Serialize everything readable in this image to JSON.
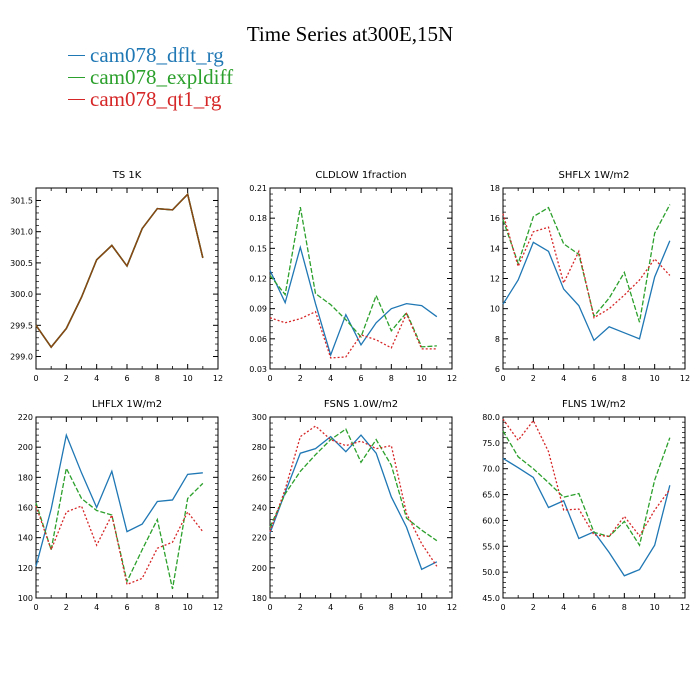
{
  "title": "Time Series at300E,15N",
  "legend": [
    {
      "label": "cam078_dflt_rg",
      "color": "#1f77b4"
    },
    {
      "label": "cam078_expldiff",
      "color": "#2ca02c"
    },
    {
      "label": "cam078_qt1_rg",
      "color": "#d62728"
    }
  ],
  "chart_data": [
    {
      "type": "line",
      "title": "TS   1K",
      "xlim": [
        0,
        12
      ],
      "xticks": [
        0,
        2,
        4,
        6,
        8,
        10,
        12
      ],
      "ylim": [
        298.8,
        301.7
      ],
      "yticks": [
        299.0,
        299.5,
        300.0,
        300.5,
        301.0,
        301.5
      ],
      "ytick_labels": [
        "299.0",
        "299.5",
        "300.0",
        "300.5",
        "301.0",
        "301.5"
      ],
      "x": [
        0,
        1,
        2,
        3,
        4,
        5,
        6,
        7,
        8,
        9,
        10,
        11
      ],
      "series": [
        {
          "name": "cam078_dflt_rg",
          "values": [
            299.5,
            299.15,
            299.45,
            299.95,
            300.55,
            300.78,
            300.45,
            301.05,
            301.37,
            301.35,
            301.6,
            300.58
          ]
        },
        {
          "name": "cam078_expldiff",
          "values": [
            299.5,
            299.15,
            299.45,
            299.95,
            300.55,
            300.78,
            300.45,
            301.05,
            301.37,
            301.35,
            301.6,
            300.58
          ]
        },
        {
          "name": "cam078_qt1_rg",
          "values": [
            299.5,
            299.15,
            299.45,
            299.95,
            300.55,
            300.78,
            300.45,
            301.05,
            301.37,
            301.35,
            301.6,
            300.58
          ]
        }
      ]
    },
    {
      "type": "line",
      "title": "CLDLOW   1fraction",
      "xlim": [
        0,
        12
      ],
      "xticks": [
        0,
        2,
        4,
        6,
        8,
        10,
        12
      ],
      "ylim": [
        0.03,
        0.21
      ],
      "yticks": [
        0.03,
        0.06,
        0.09,
        0.12,
        0.15,
        0.18,
        0.21
      ],
      "ytick_labels": [
        "0.03",
        "0.06",
        "0.09",
        "0.12",
        "0.15",
        "0.18",
        "0.21"
      ],
      "x": [
        0,
        1,
        2,
        3,
        4,
        5,
        6,
        7,
        8,
        9,
        10,
        11
      ],
      "series": [
        {
          "name": "cam078_dflt_rg",
          "values": [
            0.128,
            0.096,
            0.151,
            0.095,
            0.044,
            0.084,
            0.054,
            0.076,
            0.09,
            0.095,
            0.093,
            0.082
          ]
        },
        {
          "name": "cam078_expldiff",
          "values": [
            0.123,
            0.104,
            0.191,
            0.105,
            0.094,
            0.079,
            0.062,
            0.103,
            0.068,
            0.086,
            0.052,
            0.053
          ]
        },
        {
          "name": "cam078_qt1_rg",
          "values": [
            0.081,
            0.076,
            0.08,
            0.087,
            0.041,
            0.042,
            0.064,
            0.059,
            0.051,
            0.085,
            0.05,
            0.05
          ]
        }
      ]
    },
    {
      "type": "line",
      "title": "SHFLX   1W/m2",
      "xlim": [
        0,
        12
      ],
      "xticks": [
        0,
        2,
        4,
        6,
        8,
        10,
        12
      ],
      "ylim": [
        6,
        18
      ],
      "yticks": [
        6,
        8,
        10,
        12,
        14,
        16,
        18
      ],
      "ytick_labels": [
        "6",
        "8",
        "10",
        "12",
        "14",
        "16",
        "18"
      ],
      "x": [
        0,
        1,
        2,
        3,
        4,
        5,
        6,
        7,
        8,
        9,
        10,
        11
      ],
      "series": [
        {
          "name": "cam078_dflt_rg",
          "values": [
            10.3,
            11.9,
            14.4,
            13.8,
            11.3,
            10.2,
            7.9,
            8.8,
            8.4,
            8.0,
            12.1,
            14.5
          ]
        },
        {
          "name": "cam078_expldiff",
          "values": [
            15.9,
            13.0,
            16.1,
            16.7,
            14.3,
            13.6,
            9.5,
            10.7,
            12.4,
            9.1,
            15.0,
            16.9
          ]
        },
        {
          "name": "cam078_qt1_rg",
          "values": [
            16.3,
            12.8,
            15.1,
            15.4,
            11.7,
            13.8,
            9.4,
            10.0,
            10.9,
            11.9,
            13.3,
            12.2
          ]
        }
      ]
    },
    {
      "type": "line",
      "title": "LHFLX   1W/m2",
      "xlim": [
        0,
        12
      ],
      "xticks": [
        0,
        2,
        4,
        6,
        8,
        10,
        12
      ],
      "ylim": [
        100,
        220
      ],
      "yticks": [
        100,
        120,
        140,
        160,
        180,
        200,
        220
      ],
      "ytick_labels": [
        "100",
        "120",
        "140",
        "160",
        "180",
        "200",
        "220"
      ],
      "x": [
        0,
        1,
        2,
        3,
        4,
        5,
        6,
        7,
        8,
        9,
        10,
        11
      ],
      "series": [
        {
          "name": "cam078_dflt_rg",
          "values": [
            121,
            159,
            208,
            183,
            160,
            184,
            144,
            149,
            164,
            165,
            182,
            183
          ]
        },
        {
          "name": "cam078_expldiff",
          "values": [
            163,
            132,
            186,
            166,
            158,
            155,
            111,
            132,
            152,
            106,
            166,
            176
          ]
        },
        {
          "name": "cam078_qt1_rg",
          "values": [
            161,
            132,
            157,
            161,
            135,
            155,
            109,
            113,
            133,
            137,
            157,
            144
          ]
        }
      ]
    },
    {
      "type": "line",
      "title": "FSNS   1.0W/m2",
      "xlim": [
        0,
        12
      ],
      "xticks": [
        0,
        2,
        4,
        6,
        8,
        10,
        12
      ],
      "ylim": [
        180,
        300
      ],
      "yticks": [
        180,
        200,
        220,
        240,
        260,
        280,
        300
      ],
      "ytick_labels": [
        "180",
        "200",
        "220",
        "240",
        "260",
        "280",
        "300"
      ],
      "x": [
        0,
        1,
        2,
        3,
        4,
        5,
        6,
        7,
        8,
        9,
        10,
        11
      ],
      "series": [
        {
          "name": "cam078_dflt_rg",
          "values": [
            223,
            250,
            276,
            279,
            287,
            277,
            288,
            276,
            247,
            227,
            199,
            204
          ]
        },
        {
          "name": "cam078_expldiff",
          "values": [
            227,
            249,
            264,
            275,
            285,
            292,
            270,
            285,
            268,
            233,
            225,
            218
          ]
        },
        {
          "name": "cam078_qt1_rg",
          "values": [
            224,
            252,
            287,
            294,
            285,
            281,
            284,
            279,
            281,
            236,
            216,
            201
          ]
        }
      ]
    },
    {
      "type": "line",
      "title": "FLNS   1W/m2",
      "xlim": [
        0,
        12
      ],
      "xticks": [
        0,
        2,
        4,
        6,
        8,
        10,
        12
      ],
      "ylim": [
        45,
        80
      ],
      "yticks": [
        45,
        50,
        55,
        60,
        65,
        70,
        75,
        80
      ],
      "ytick_labels": [
        "45.0",
        "50.0",
        "55.0",
        "60.0",
        "65.0",
        "70.0",
        "75.0",
        "80.0"
      ],
      "x": [
        0,
        1,
        2,
        3,
        4,
        5,
        6,
        7,
        8,
        9,
        10,
        11
      ],
      "series": [
        {
          "name": "cam078_dflt_rg",
          "values": [
            72.0,
            70.2,
            68.3,
            62.5,
            63.8,
            56.5,
            57.8,
            53.8,
            49.3,
            50.5,
            55.2,
            66.8
          ]
        },
        {
          "name": "cam078_expldiff",
          "values": [
            77.3,
            72.3,
            70.0,
            67.3,
            64.5,
            65.2,
            57.7,
            56.9,
            59.8,
            55.2,
            67.8,
            76.0
          ]
        },
        {
          "name": "cam078_qt1_rg",
          "values": [
            79.6,
            75.5,
            79.3,
            73.3,
            62.0,
            62.2,
            57.2,
            56.9,
            60.8,
            57.0,
            62.0,
            66.0
          ]
        }
      ]
    }
  ]
}
